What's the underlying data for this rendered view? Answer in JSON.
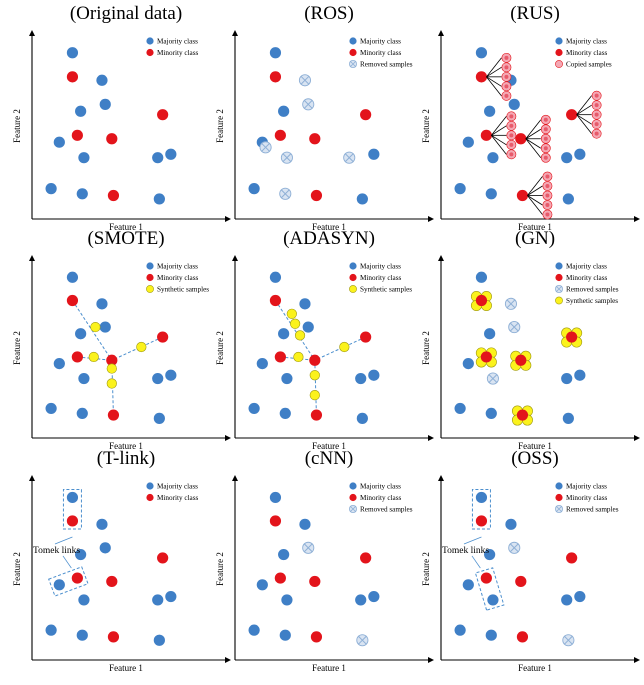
{
  "colors": {
    "majority": "#3f7fc6",
    "minority": "#e3141b",
    "synthetic": "#fbf21c",
    "copied": "#f4a8b4",
    "removed": "#8fb0d6",
    "link": "#4c8fce"
  },
  "legend_labels": {
    "majority": "Majority class",
    "minority": "Minority class",
    "removed": "Removed samples",
    "copied": "Copied samples",
    "synthetic": "Synthetic samples"
  },
  "axis_labels": {
    "x": "Feature 1",
    "y": "Feature 2"
  },
  "annotation_tomek": "Tomek links",
  "chart_data": [
    {
      "type": "scatter",
      "title": "(Original data)",
      "xlabel": "Feature 1",
      "ylabel": "Feature 2",
      "xlim": [
        0,
        100
      ],
      "ylim": [
        0,
        100
      ],
      "legend": [
        "majority",
        "minority"
      ],
      "majority": [
        [
          21,
          92
        ],
        [
          39,
          76
        ],
        [
          41,
          62
        ],
        [
          26,
          58
        ],
        [
          13,
          40
        ],
        [
          28,
          31
        ],
        [
          73,
          31
        ],
        [
          81,
          33
        ],
        [
          8,
          13
        ],
        [
          27,
          10
        ],
        [
          74,
          7
        ]
      ],
      "minority": [
        [
          21,
          78
        ],
        [
          76,
          56
        ],
        [
          24,
          44
        ],
        [
          45,
          42
        ],
        [
          46,
          9
        ]
      ],
      "removed": [],
      "synthetic": [],
      "copied": [],
      "edges": [],
      "tomek": [],
      "flowers": []
    },
    {
      "type": "scatter",
      "title": "(ROS)",
      "xlabel": "Feature 1",
      "ylabel": "Feature 2",
      "xlim": [
        0,
        100
      ],
      "ylim": [
        0,
        100
      ],
      "legend": [
        "majority",
        "minority",
        "removed"
      ],
      "majority": [
        [
          21,
          92
        ],
        [
          26,
          58
        ],
        [
          13,
          40
        ],
        [
          74,
          7
        ],
        [
          8,
          13
        ],
        [
          81,
          33
        ]
      ],
      "minority": [
        [
          21,
          78
        ],
        [
          76,
          56
        ],
        [
          24,
          44
        ],
        [
          45,
          42
        ],
        [
          46,
          9
        ]
      ],
      "removed": [
        [
          39,
          76
        ],
        [
          41,
          62
        ],
        [
          15,
          37
        ],
        [
          28,
          31
        ],
        [
          66,
          31
        ],
        [
          27,
          10
        ]
      ],
      "synthetic": [],
      "copied": [],
      "edges": [],
      "tomek": [],
      "flowers": []
    },
    {
      "type": "scatter",
      "title": "(RUS)",
      "xlabel": "Feature 1",
      "ylabel": "Feature 2",
      "xlim": [
        0,
        100
      ],
      "ylim": [
        0,
        100
      ],
      "legend": [
        "majority",
        "minority",
        "copied"
      ],
      "majority": [
        [
          21,
          92
        ],
        [
          39,
          76
        ],
        [
          41,
          62
        ],
        [
          26,
          58
        ],
        [
          13,
          40
        ],
        [
          28,
          31
        ],
        [
          73,
          31
        ],
        [
          81,
          33
        ],
        [
          8,
          13
        ],
        [
          27,
          10
        ],
        [
          74,
          7
        ]
      ],
      "minority": [
        [
          21,
          78
        ],
        [
          76,
          56
        ],
        [
          24,
          44
        ],
        [
          45,
          42
        ],
        [
          46,
          9
        ]
      ],
      "removed": [],
      "synthetic": [],
      "copied": [
        [
          21,
          78
        ],
        [
          76,
          56
        ],
        [
          24,
          44
        ],
        [
          45,
          42
        ],
        [
          46,
          9
        ]
      ],
      "edges": [],
      "tomek": [],
      "flowers": []
    },
    {
      "type": "scatter",
      "title": "(SMOTE)",
      "xlabel": "Feature 1",
      "ylabel": "Feature 2",
      "xlim": [
        0,
        100
      ],
      "ylim": [
        0,
        100
      ],
      "legend": [
        "majority",
        "minority",
        "synthetic"
      ],
      "majority": [
        [
          21,
          92
        ],
        [
          39,
          76
        ],
        [
          41,
          62
        ],
        [
          26,
          58
        ],
        [
          13,
          40
        ],
        [
          28,
          31
        ],
        [
          73,
          31
        ],
        [
          81,
          33
        ],
        [
          8,
          13
        ],
        [
          27,
          10
        ],
        [
          74,
          7
        ]
      ],
      "minority": [
        [
          21,
          78
        ],
        [
          76,
          56
        ],
        [
          24,
          44
        ],
        [
          45,
          42
        ],
        [
          46,
          9
        ]
      ],
      "removed": [],
      "synthetic": [
        [
          35,
          62
        ],
        [
          34,
          44
        ],
        [
          63,
          50
        ],
        [
          45,
          37
        ],
        [
          45,
          28
        ]
      ],
      "copied": [],
      "edges": [
        [
          0,
          3
        ],
        [
          2,
          3
        ],
        [
          1,
          3
        ],
        [
          3,
          4
        ]
      ],
      "tomek": [],
      "flowers": []
    },
    {
      "type": "scatter",
      "title": "(ADASYN)",
      "xlabel": "Feature 1",
      "ylabel": "Feature 2",
      "xlim": [
        0,
        100
      ],
      "ylim": [
        0,
        100
      ],
      "legend": [
        "majority",
        "minority",
        "synthetic"
      ],
      "majority": [
        [
          21,
          92
        ],
        [
          39,
          76
        ],
        [
          41,
          62
        ],
        [
          26,
          58
        ],
        [
          13,
          40
        ],
        [
          28,
          31
        ],
        [
          73,
          31
        ],
        [
          81,
          33
        ],
        [
          8,
          13
        ],
        [
          27,
          10
        ],
        [
          74,
          7
        ]
      ],
      "minority": [
        [
          21,
          78
        ],
        [
          76,
          56
        ],
        [
          24,
          44
        ],
        [
          45,
          42
        ],
        [
          46,
          9
        ]
      ],
      "removed": [],
      "synthetic": [
        [
          31,
          70
        ],
        [
          33,
          64
        ],
        [
          36,
          57
        ],
        [
          35,
          44
        ],
        [
          45,
          33
        ],
        [
          45,
          21
        ],
        [
          63,
          50
        ]
      ],
      "copied": [],
      "edges": [
        [
          0,
          3
        ],
        [
          2,
          3
        ],
        [
          1,
          3
        ],
        [
          3,
          4
        ]
      ],
      "tomek": [],
      "flowers": []
    },
    {
      "type": "scatter",
      "title": "(GN)",
      "xlabel": "Feature 1",
      "ylabel": "Feature 2",
      "xlim": [
        0,
        100
      ],
      "ylim": [
        0,
        100
      ],
      "legend": [
        "majority",
        "minority",
        "removed",
        "synthetic"
      ],
      "majority": [
        [
          21,
          92
        ],
        [
          26,
          58
        ],
        [
          13,
          40
        ],
        [
          73,
          31
        ],
        [
          81,
          33
        ],
        [
          8,
          13
        ],
        [
          27,
          10
        ],
        [
          74,
          7
        ]
      ],
      "minority": [
        [
          21,
          78
        ],
        [
          76,
          56
        ],
        [
          24,
          44
        ],
        [
          45,
          42
        ],
        [
          46,
          9
        ]
      ],
      "removed": [
        [
          39,
          76
        ],
        [
          41,
          62
        ],
        [
          28,
          31
        ]
      ],
      "synthetic": [],
      "copied": [],
      "edges": [],
      "tomek": [],
      "flowers": [
        [
          21,
          78
        ],
        [
          76,
          56
        ],
        [
          24,
          44
        ],
        [
          45,
          42
        ],
        [
          46,
          9
        ]
      ]
    },
    {
      "type": "scatter",
      "title": "(T-link)",
      "xlabel": "Feature 1",
      "ylabel": "Feature 2",
      "xlim": [
        0,
        100
      ],
      "ylim": [
        0,
        100
      ],
      "legend": [
        "majority",
        "minority"
      ],
      "majority": [
        [
          21,
          92
        ],
        [
          39,
          76
        ],
        [
          41,
          62
        ],
        [
          26,
          58
        ],
        [
          13,
          40
        ],
        [
          28,
          31
        ],
        [
          73,
          31
        ],
        [
          81,
          33
        ],
        [
          8,
          13
        ],
        [
          27,
          10
        ],
        [
          74,
          7
        ]
      ],
      "minority": [
        [
          21,
          78
        ],
        [
          76,
          56
        ],
        [
          24,
          44
        ],
        [
          45,
          42
        ],
        [
          46,
          9
        ]
      ],
      "removed": [],
      "synthetic": [],
      "copied": [],
      "edges": [],
      "tomek": [
        {
          "minority": 0,
          "majority": 0
        },
        {
          "minority": 2,
          "majority": 4
        }
      ],
      "flowers": []
    },
    {
      "type": "scatter",
      "title": "(cNN)",
      "xlabel": "Feature 1",
      "ylabel": "Feature 2",
      "xlim": [
        0,
        100
      ],
      "ylim": [
        0,
        100
      ],
      "legend": [
        "majority",
        "minority",
        "removed"
      ],
      "majority": [
        [
          21,
          92
        ],
        [
          39,
          76
        ],
        [
          26,
          58
        ],
        [
          13,
          40
        ],
        [
          28,
          31
        ],
        [
          73,
          31
        ],
        [
          81,
          33
        ],
        [
          8,
          13
        ],
        [
          27,
          10
        ]
      ],
      "minority": [
        [
          21,
          78
        ],
        [
          76,
          56
        ],
        [
          24,
          44
        ],
        [
          45,
          42
        ],
        [
          46,
          9
        ]
      ],
      "removed": [
        [
          41,
          62
        ],
        [
          74,
          7
        ]
      ],
      "synthetic": [],
      "copied": [],
      "edges": [],
      "tomek": [],
      "flowers": []
    },
    {
      "type": "scatter",
      "title": "(OSS)",
      "xlabel": "Feature 1",
      "ylabel": "Feature 2",
      "xlim": [
        0,
        100
      ],
      "ylim": [
        0,
        100
      ],
      "legend": [
        "majority",
        "minority",
        "removed"
      ],
      "majority": [
        [
          21,
          92
        ],
        [
          39,
          76
        ],
        [
          26,
          58
        ],
        [
          13,
          40
        ],
        [
          28,
          31
        ],
        [
          73,
          31
        ],
        [
          81,
          33
        ],
        [
          8,
          13
        ],
        [
          27,
          10
        ]
      ],
      "minority": [
        [
          21,
          78
        ],
        [
          76,
          56
        ],
        [
          24,
          44
        ],
        [
          45,
          42
        ],
        [
          46,
          9
        ]
      ],
      "removed": [
        [
          41,
          62
        ],
        [
          74,
          7
        ]
      ],
      "synthetic": [],
      "copied": [],
      "edges": [],
      "tomek": [
        {
          "minority": 0,
          "majority": 0
        },
        {
          "minority": 2,
          "majority": 4
        }
      ],
      "flowers": []
    }
  ]
}
